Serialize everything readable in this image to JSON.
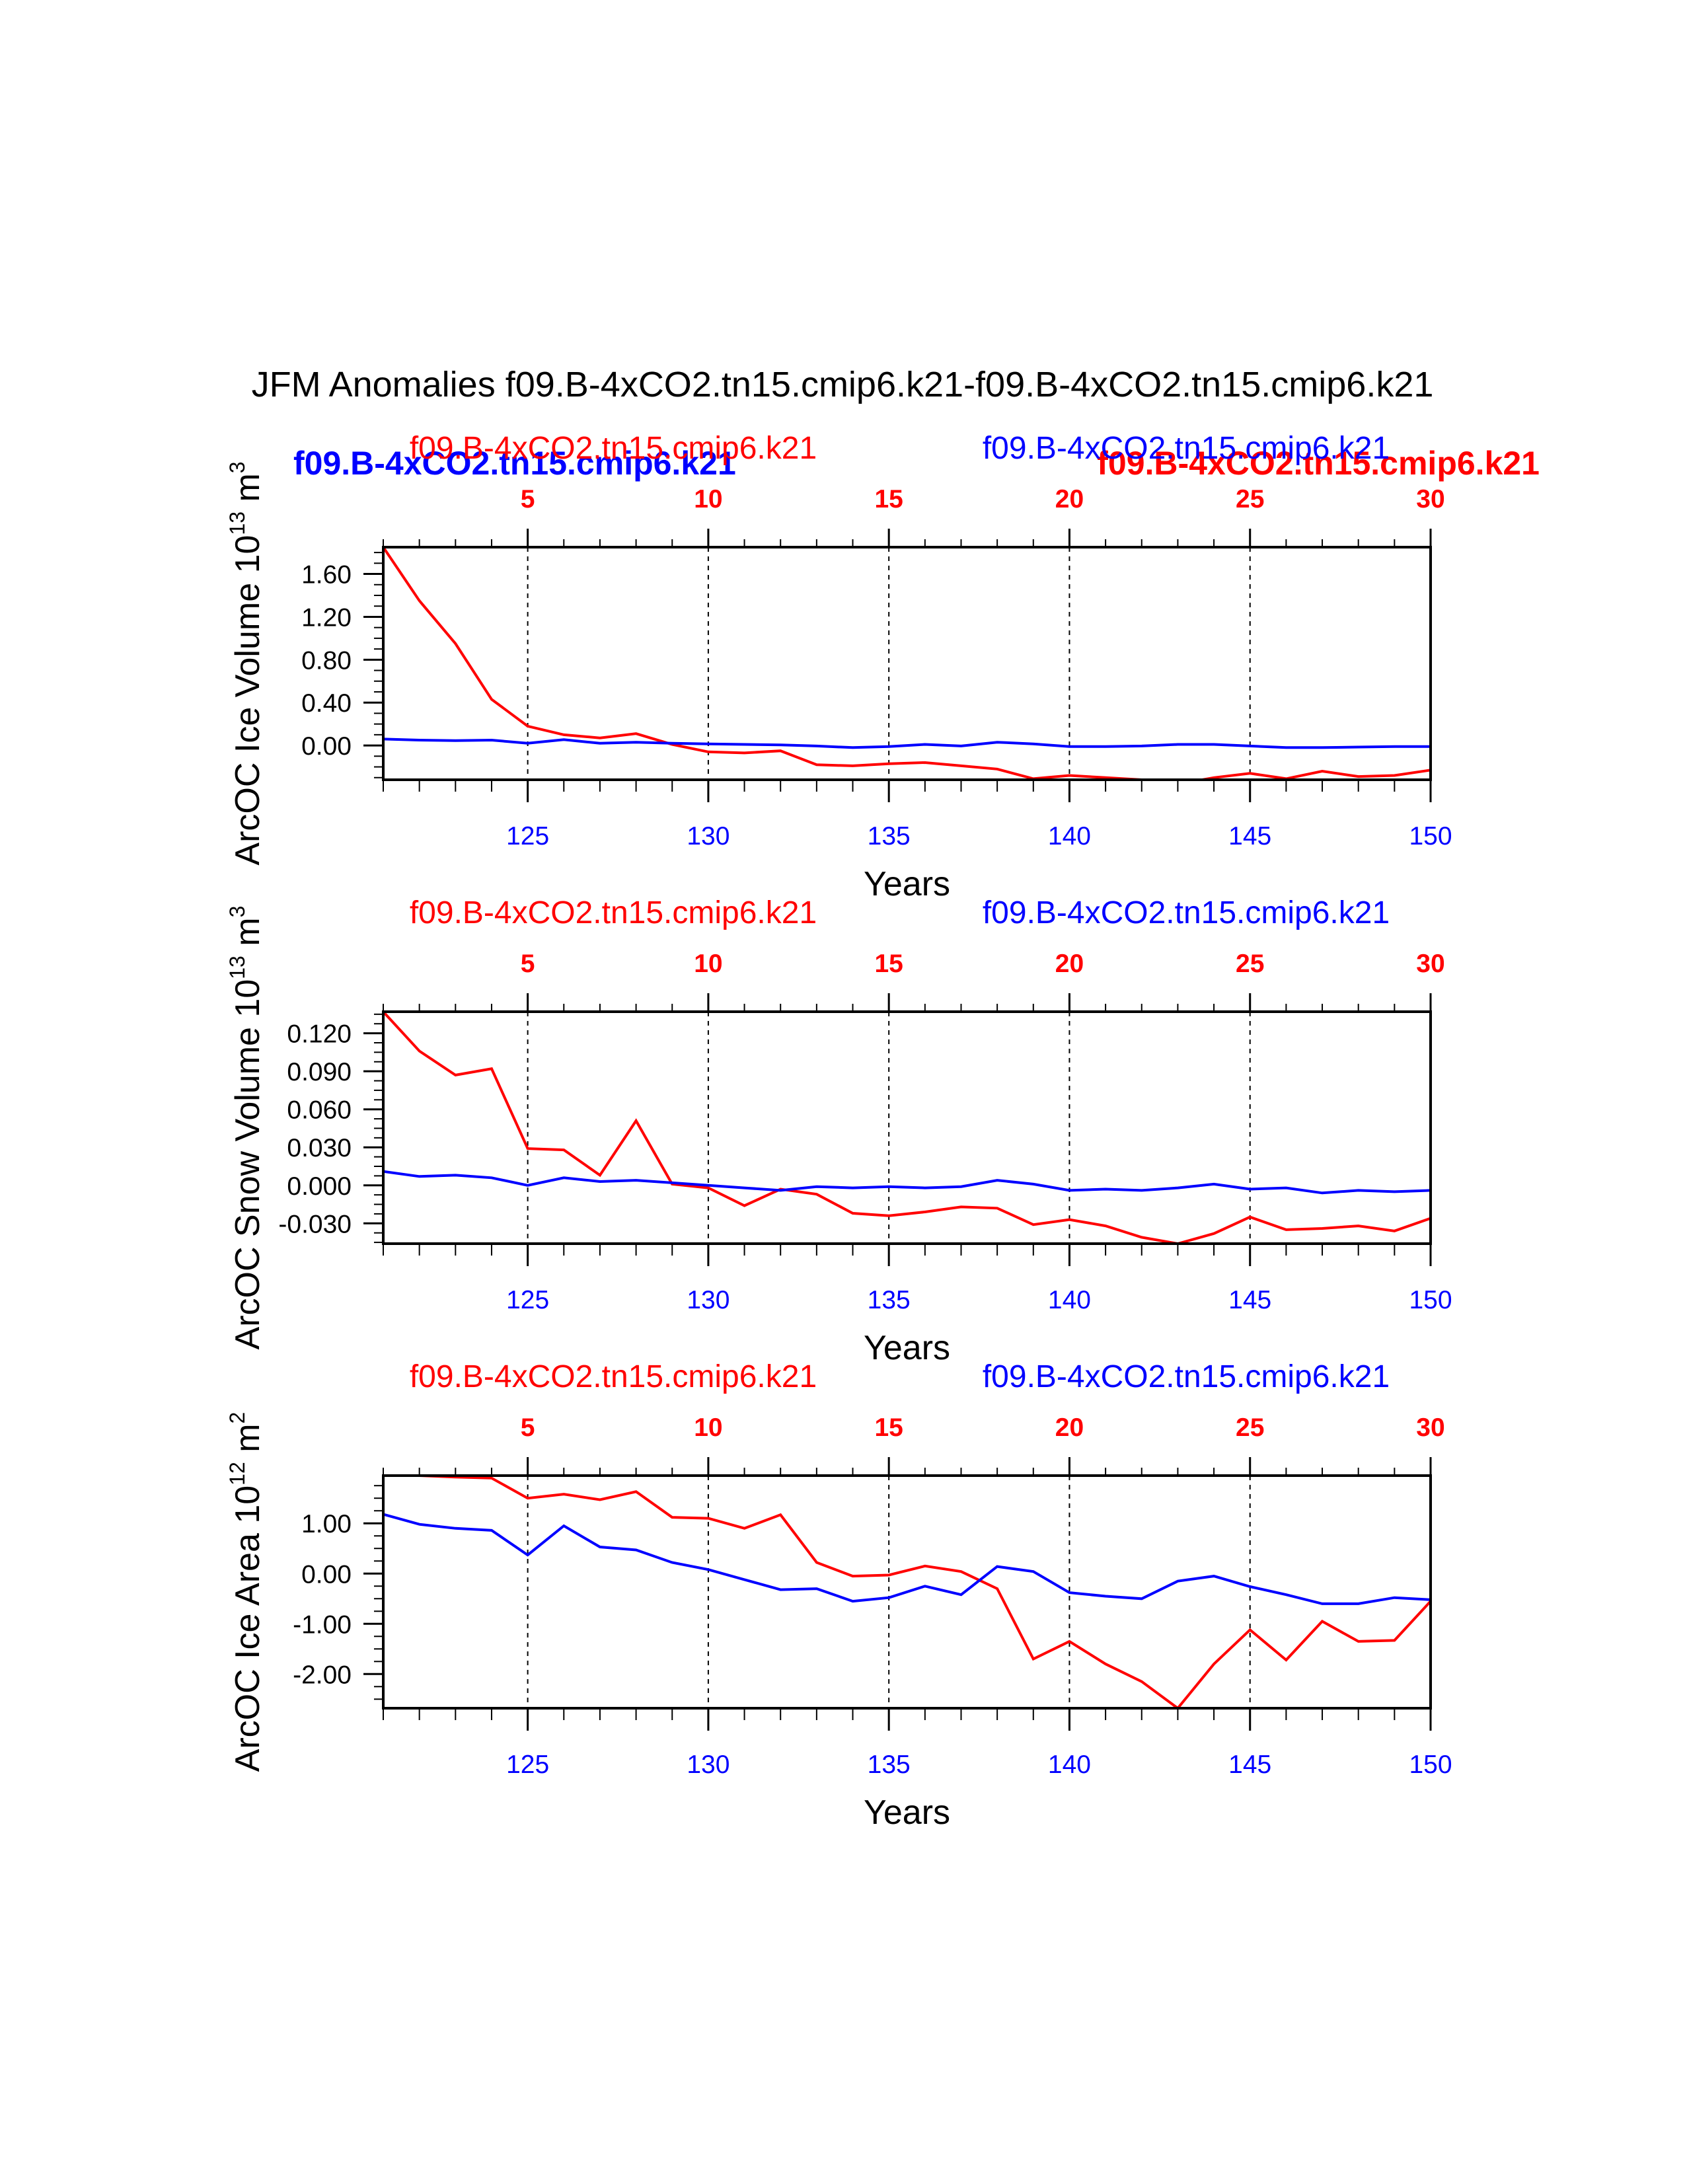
{
  "page": {
    "title": "JFM Anomalies f09.B-4xCO2.tn15.cmip6.k21-f09.B-4xCO2.tn15.cmip6.k21",
    "legend": {
      "blue_bold": "f09.B-4xCO2.tn15.cmip6.k21",
      "red_bold": "f09.B-4xCO2.tn15.cmip6.k21"
    }
  },
  "colors": {
    "red": "#ff0000",
    "blue": "#0000ff",
    "axis": "#000000"
  },
  "chart_data": [
    {
      "type": "line",
      "title_left": "f09.B-4xCO2.tn15.cmip6.k21",
      "title_right": "f09.B-4xCO2.tn15.cmip6.k21",
      "ylabel": "ArcOC Ice Volume 10",
      "ylabel_sup": "13",
      "ylabel_unit": " m",
      "ylabel_unit_sup": "3",
      "xlabel": "Years",
      "xlim": [
        121,
        150
      ],
      "ylim": [
        -0.32,
        1.85
      ],
      "yticks": [
        0,
        0.4,
        0.8,
        1.2,
        1.6
      ],
      "ytick_labels": [
        "0.00",
        "0.40",
        "0.80",
        "1.20",
        "1.60"
      ],
      "yminor_step": 0.1,
      "bottom_ticks": [
        125,
        130,
        135,
        140,
        145,
        150
      ],
      "top_ticks": [
        5,
        10,
        15,
        20,
        25,
        30
      ],
      "x": [
        121,
        122,
        123,
        124,
        125,
        126,
        127,
        128,
        129,
        130,
        131,
        132,
        133,
        134,
        135,
        136,
        137,
        138,
        139,
        140,
        141,
        142,
        143,
        144,
        145,
        146,
        147,
        148,
        149,
        150
      ],
      "series": [
        {
          "name": "red",
          "color": "#ff0000",
          "values": [
            1.85,
            1.35,
            0.95,
            0.43,
            0.18,
            0.1,
            0.07,
            0.11,
            0.01,
            -0.06,
            -0.07,
            -0.05,
            -0.18,
            -0.19,
            -0.17,
            -0.16,
            -0.19,
            -0.22,
            -0.31,
            -0.28,
            -0.3,
            -0.32,
            -0.36,
            -0.3,
            -0.26,
            -0.31,
            -0.24,
            -0.29,
            -0.28,
            -0.23
          ]
        },
        {
          "name": "blue",
          "color": "#0000ff",
          "values": [
            0.06,
            0.05,
            0.045,
            0.05,
            0.02,
            0.055,
            0.02,
            0.03,
            0.02,
            0.015,
            0.01,
            0.005,
            -0.005,
            -0.02,
            -0.01,
            0.01,
            -0.005,
            0.03,
            0.015,
            -0.01,
            -0.01,
            -0.005,
            0.01,
            0.01,
            -0.005,
            -0.02,
            -0.02,
            -0.015,
            -0.01,
            -0.01
          ]
        }
      ]
    },
    {
      "type": "line",
      "title_left": "f09.B-4xCO2.tn15.cmip6.k21",
      "title_right": "f09.B-4xCO2.tn15.cmip6.k21",
      "ylabel": "ArcOC Snow Volume 10",
      "ylabel_sup": "13",
      "ylabel_unit": " m",
      "ylabel_unit_sup": "3",
      "xlabel": "Years",
      "xlim": [
        121,
        150
      ],
      "ylim": [
        -0.046,
        0.137
      ],
      "yticks": [
        -0.03,
        0,
        0.03,
        0.06,
        0.09,
        0.12
      ],
      "ytick_labels": [
        "-0.030",
        "0.000",
        "0.030",
        "0.060",
        "0.090",
        "0.120"
      ],
      "yminor_step": 0.0075,
      "bottom_ticks": [
        125,
        130,
        135,
        140,
        145,
        150
      ],
      "top_ticks": [
        5,
        10,
        15,
        20,
        25,
        30
      ],
      "x": [
        121,
        122,
        123,
        124,
        125,
        126,
        127,
        128,
        129,
        130,
        131,
        132,
        133,
        134,
        135,
        136,
        137,
        138,
        139,
        140,
        141,
        142,
        143,
        144,
        145,
        146,
        147,
        148,
        149,
        150
      ],
      "series": [
        {
          "name": "red",
          "color": "#ff0000",
          "values": [
            0.137,
            0.106,
            0.087,
            0.092,
            0.029,
            0.028,
            0.008,
            0.051,
            0.001,
            -0.002,
            -0.016,
            -0.003,
            -0.007,
            -0.022,
            -0.024,
            -0.021,
            -0.017,
            -0.018,
            -0.031,
            -0.027,
            -0.032,
            -0.041,
            -0.046,
            -0.038,
            -0.025,
            -0.035,
            -0.034,
            -0.032,
            -0.036,
            -0.026
          ]
        },
        {
          "name": "blue",
          "color": "#0000ff",
          "values": [
            0.011,
            0.007,
            0.008,
            0.006,
            0.0,
            0.006,
            0.003,
            0.004,
            0.002,
            0.0,
            -0.002,
            -0.004,
            -0.001,
            -0.002,
            -0.001,
            -0.002,
            -0.001,
            0.004,
            0.001,
            -0.004,
            -0.003,
            -0.004,
            -0.002,
            0.001,
            -0.003,
            -0.002,
            -0.006,
            -0.004,
            -0.005,
            -0.004
          ]
        }
      ]
    },
    {
      "type": "line",
      "title_left": "f09.B-4xCO2.tn15.cmip6.k21",
      "title_right": "f09.B-4xCO2.tn15.cmip6.k21",
      "ylabel": "ArcOC Ice Area 10",
      "ylabel_sup": "12",
      "ylabel_unit": " m",
      "ylabel_unit_sup": "2",
      "xlabel": "Years",
      "xlim": [
        121,
        150
      ],
      "ylim": [
        -2.68,
        1.95
      ],
      "yticks": [
        -2,
        -1,
        0,
        1
      ],
      "ytick_labels": [
        "-2.00",
        "-1.00",
        "0.00",
        "1.00"
      ],
      "yminor_step": 0.25,
      "bottom_ticks": [
        125,
        130,
        135,
        140,
        145,
        150
      ],
      "top_ticks": [
        5,
        10,
        15,
        20,
        25,
        30
      ],
      "x": [
        121,
        122,
        123,
        124,
        125,
        126,
        127,
        128,
        129,
        130,
        131,
        132,
        133,
        134,
        135,
        136,
        137,
        138,
        139,
        140,
        141,
        142,
        143,
        144,
        145,
        146,
        147,
        148,
        149,
        150
      ],
      "series": [
        {
          "name": "red",
          "color": "#ff0000",
          "values": [
            1.95,
            1.95,
            1.92,
            1.9,
            1.5,
            1.58,
            1.47,
            1.63,
            1.12,
            1.1,
            0.9,
            1.17,
            0.22,
            -0.05,
            -0.03,
            0.15,
            0.04,
            -0.3,
            -1.7,
            -1.35,
            -1.8,
            -2.15,
            -2.68,
            -1.8,
            -1.12,
            -1.72,
            -0.95,
            -1.35,
            -1.33,
            -0.55
          ]
        },
        {
          "name": "blue",
          "color": "#0000ff",
          "values": [
            1.18,
            0.98,
            0.9,
            0.86,
            0.37,
            0.95,
            0.53,
            0.47,
            0.22,
            0.08,
            -0.12,
            -0.32,
            -0.3,
            -0.55,
            -0.48,
            -0.25,
            -0.42,
            0.14,
            0.04,
            -0.38,
            -0.45,
            -0.5,
            -0.15,
            -0.05,
            -0.26,
            -0.42,
            -0.6,
            -0.6,
            -0.48,
            -0.52
          ]
        }
      ]
    }
  ]
}
